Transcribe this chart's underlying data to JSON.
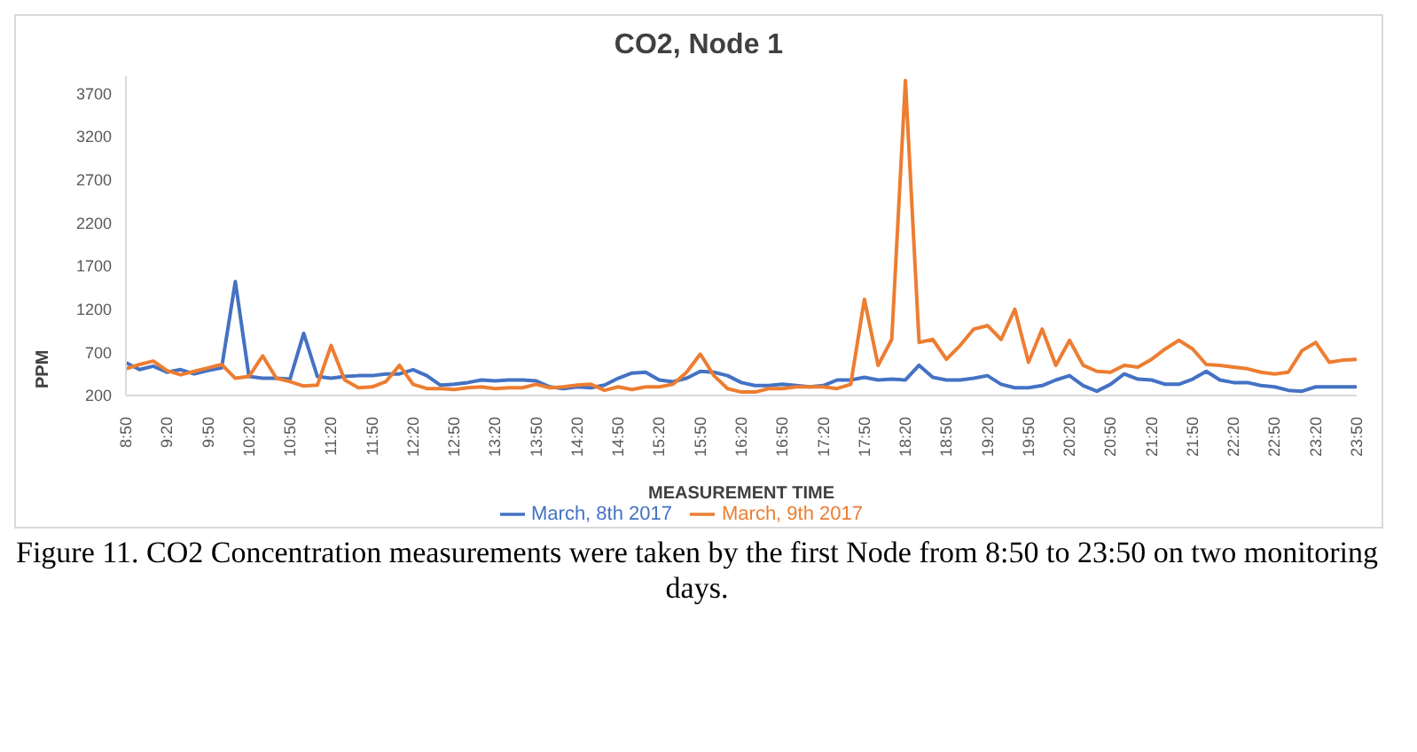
{
  "chart_data": {
    "type": "line",
    "title": "CO2, Node 1",
    "xlabel": "MEASUREMENT TIME",
    "ylabel": "PPM",
    "categories": [
      "8:50",
      null,
      null,
      "9:20",
      null,
      null,
      "9:50",
      null,
      null,
      "10:20",
      null,
      null,
      "10:50",
      null,
      null,
      "11:20",
      null,
      null,
      "11:50",
      null,
      null,
      "12:20",
      null,
      null,
      "12:50",
      null,
      null,
      "13:20",
      null,
      null,
      "13:50",
      null,
      null,
      "14:20",
      null,
      null,
      "14:50",
      null,
      null,
      "15:20",
      null,
      null,
      "15:50",
      null,
      null,
      "16:20",
      null,
      null,
      "16:50",
      null,
      null,
      "17:20",
      null,
      null,
      "17:50",
      null,
      null,
      "18:20",
      null,
      null,
      "18:50",
      null,
      null,
      "19:20",
      null,
      null,
      "19:50",
      null,
      null,
      "20:20",
      null,
      null,
      "20:50",
      null,
      null,
      "21:20",
      null,
      null,
      "21:50",
      null,
      null,
      "22:20",
      null,
      null,
      "22:50",
      null,
      null,
      "23:20",
      null,
      null,
      "23:50"
    ],
    "series": [
      {
        "name": "March, 8th 2017",
        "color": "#4472c4",
        "values": [
          580,
          500,
          540,
          470,
          500,
          450,
          490,
          520,
          1520,
          420,
          400,
          400,
          390,
          920,
          420,
          400,
          420,
          430,
          430,
          450,
          450,
          500,
          430,
          320,
          330,
          350,
          380,
          370,
          380,
          380,
          370,
          300,
          280,
          300,
          290,
          320,
          400,
          460,
          470,
          380,
          360,
          400,
          480,
          470,
          430,
          350,
          315,
          315,
          330,
          315,
          300,
          315,
          380,
          380,
          410,
          380,
          390,
          380,
          550,
          410,
          380,
          380,
          400,
          430,
          330,
          290,
          290,
          315,
          380,
          430,
          315,
          250,
          330,
          450,
          390,
          380,
          330,
          330,
          390,
          480,
          380,
          350,
          350,
          315,
          300,
          260,
          250,
          300,
          300,
          300,
          300
        ]
      },
      {
        "name": "March, 9th 2017",
        "color": "#ed7d31",
        "values": [
          510,
          560,
          600,
          490,
          440,
          480,
          520,
          560,
          400,
          420,
          660,
          400,
          360,
          310,
          320,
          780,
          380,
          290,
          300,
          360,
          550,
          330,
          280,
          280,
          270,
          290,
          300,
          280,
          290,
          290,
          330,
          290,
          300,
          320,
          330,
          260,
          300,
          270,
          300,
          300,
          330,
          470,
          680,
          430,
          280,
          240,
          240,
          280,
          280,
          300,
          300,
          300,
          280,
          330,
          1315,
          550,
          850,
          3850,
          815,
          850,
          620,
          780,
          970,
          1010,
          850,
          1200,
          585,
          970,
          550,
          840,
          550,
          480,
          470,
          550,
          530,
          620,
          740,
          840,
          740,
          560,
          550,
          530,
          510,
          470,
          450,
          470,
          720,
          815,
          585,
          610,
          620
        ]
      }
    ],
    "ylim": [
      200,
      3900
    ],
    "yticks": [
      200,
      700,
      1200,
      1700,
      2200,
      2700,
      3200,
      3700
    ],
    "grid": false,
    "legend": "bottom",
    "marker": "none",
    "line_style": "solid",
    "annotations": [
      "Figure 11. CO2 Concentration measurements were taken by the first Node from 8:50 to 23:50 on two monitoring days."
    ]
  }
}
